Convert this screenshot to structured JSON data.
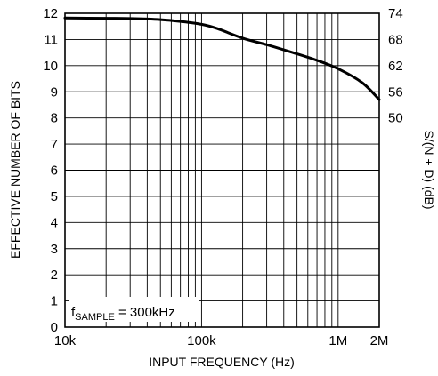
{
  "chart_data": {
    "type": "line",
    "x_scale": "log",
    "xlim": [
      10000,
      2000000
    ],
    "ylim": [
      0,
      12
    ],
    "y2lim": [
      50,
      74
    ],
    "grid": true,
    "xlabel": "INPUT FREQUENCY (Hz)",
    "ylabel": "EFFECTIVE NUMBER OF BITS",
    "y2label": "S/(N + D) (dB)",
    "x_ticks": [
      {
        "value": 10000,
        "label": "10k"
      },
      {
        "value": 100000,
        "label": "100k"
      },
      {
        "value": 1000000,
        "label": "1M"
      },
      {
        "value": 2000000,
        "label": "2M"
      }
    ],
    "y_ticks": [
      "0",
      "1",
      "2",
      "3",
      "4",
      "5",
      "6",
      "7",
      "8",
      "9",
      "10",
      "11",
      "12"
    ],
    "y2_ticks": [
      {
        "bits": 8,
        "label": "50"
      },
      {
        "bits": 9,
        "label": "56"
      },
      {
        "bits": 10,
        "label": "62"
      },
      {
        "bits": 11,
        "label": "68"
      },
      {
        "bits": 12,
        "label": "74"
      }
    ],
    "annotation": {
      "prefix": "f",
      "subscript": "SAMPLE",
      "suffix": " = 300kHz"
    },
    "series": [
      {
        "x": [
          10000,
          20000,
          30000,
          50000,
          70000,
          100000,
          130000,
          200000,
          300000,
          500000,
          700000,
          1000000,
          1500000,
          2000000
        ],
        "y": [
          11.82,
          11.81,
          11.8,
          11.76,
          11.69,
          11.58,
          11.42,
          11.05,
          10.8,
          10.45,
          10.2,
          9.88,
          9.35,
          8.7
        ]
      }
    ]
  }
}
